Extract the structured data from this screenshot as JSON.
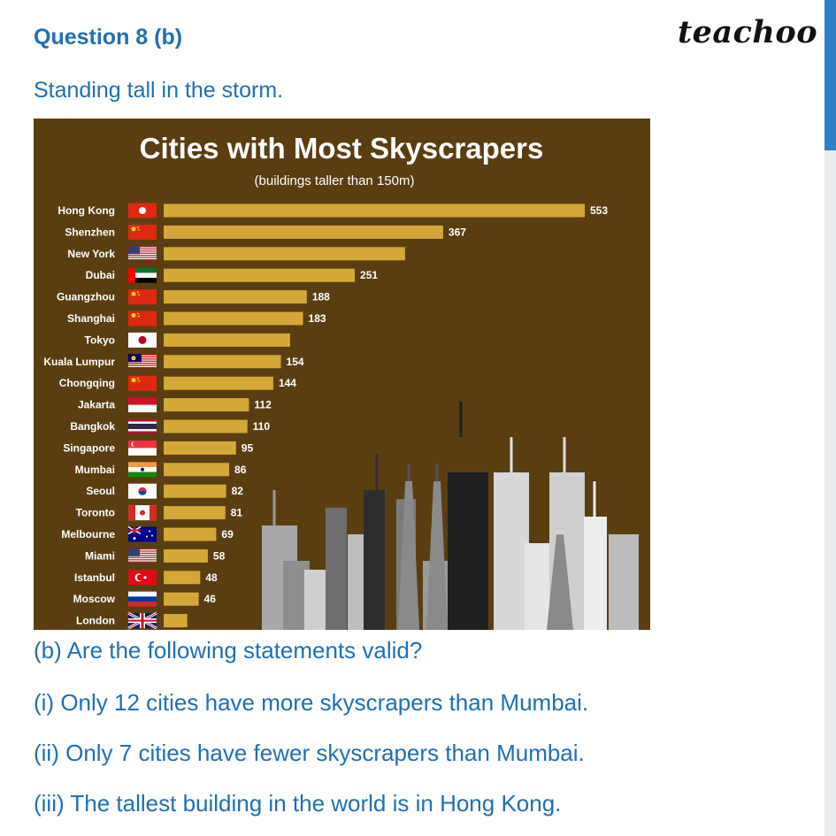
{
  "header": {
    "question": "Question 8 (b)",
    "brand": "teachoo"
  },
  "intro": "Standing tall in the storm.",
  "chart_data": {
    "type": "bar",
    "orientation": "horizontal",
    "title": "Cities with Most Skyscrapers",
    "subtitle": "(buildings taller than 150m)",
    "categories": [
      "Hong Kong",
      "Shenzhen",
      "New York",
      "Dubai",
      "Guangzhou",
      "Shanghai",
      "Tokyo",
      "Kuala Lumpur",
      "Chongqing",
      "Jakarta",
      "Bangkok",
      "Singapore",
      "Mumbai",
      "Seoul",
      "Toronto",
      "Melbourne",
      "Miami",
      "Istanbul",
      "Moscow",
      "London"
    ],
    "values": [
      553,
      367,
      317,
      251,
      188,
      183,
      166,
      154,
      144,
      112,
      110,
      95,
      86,
      82,
      81,
      69,
      58,
      48,
      46,
      31
    ],
    "value_labels": [
      "553",
      "367",
      "",
      "251",
      "188",
      "183",
      "",
      "154",
      "144",
      "112",
      "110",
      "95",
      "86",
      "82",
      "81",
      "69",
      "58",
      "48",
      "46",
      ""
    ],
    "flags": [
      "flag-hong-kong",
      "flag-china",
      "flag-usa",
      "flag-uae",
      "flag-china",
      "flag-china",
      "flag-japan",
      "flag-malaysia",
      "flag-china",
      "flag-indonesia",
      "flag-thailand",
      "flag-singapore",
      "flag-india",
      "flag-south-korea",
      "flag-canada",
      "flag-australia",
      "flag-usa",
      "flag-turkey",
      "flag-russia",
      "flag-uk"
    ],
    "colors": {
      "background": "#5a3e12",
      "bar": "#d4a838",
      "text": "#ffffff"
    },
    "grid": false
  },
  "questions": [
    "(b) Are the following statements valid?",
    "(i) Only 12 cities have more skyscrapers than Mumbai.",
    "(ii) Only 7 cities have fewer skyscrapers than Mumbai.",
    "(iii) The tallest building in the world is in Hong Kong."
  ],
  "colors": {
    "accent": "#1f6fb6",
    "scrollbar": "#2f80c4"
  }
}
